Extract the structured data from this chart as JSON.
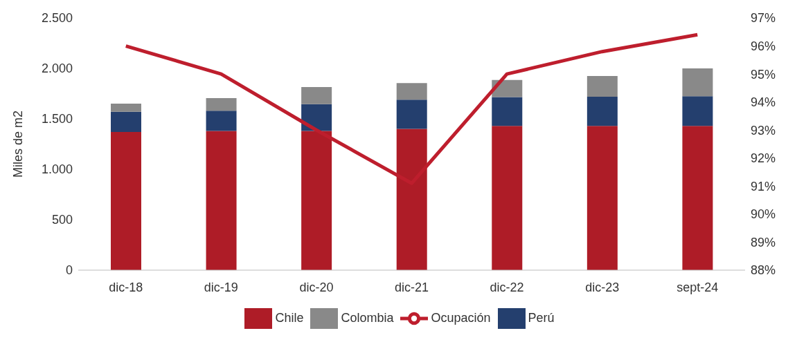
{
  "chart_data": {
    "type": "bar",
    "stacked": true,
    "ylabel": "Miles de m2",
    "categories": [
      "dic-18",
      "dic-19",
      "dic-20",
      "dic-21",
      "dic-22",
      "dic-23",
      "sept-24"
    ],
    "series": [
      {
        "name": "Chile",
        "color": "#ae1c27",
        "values": [
          1370,
          1380,
          1380,
          1400,
          1430,
          1430,
          1430
        ]
      },
      {
        "name": "Perú",
        "color": "#243f6e",
        "values": [
          200,
          200,
          265,
          290,
          285,
          290,
          295
        ]
      },
      {
        "name": "Colombia",
        "color": "#898989",
        "values": [
          80,
          125,
          170,
          165,
          170,
          205,
          275
        ]
      },
      {
        "name": "Ocupación",
        "type": "line",
        "axis": "y2",
        "color": "#be1e2d",
        "values": [
          96.0,
          95.0,
          93.0,
          91.1,
          95.0,
          95.8,
          96.4
        ]
      }
    ],
    "ylim": [
      0,
      2500
    ],
    "yticks": [
      {
        "value": 0,
        "label": "0"
      },
      {
        "value": 500,
        "label": "500"
      },
      {
        "value": 1000,
        "label": "1.000"
      },
      {
        "value": 1500,
        "label": "1.500"
      },
      {
        "value": 2000,
        "label": "2.000"
      },
      {
        "value": 2500,
        "label": "2.500"
      }
    ],
    "y2lim": [
      88,
      97
    ],
    "y2ticks": [
      {
        "value": 88,
        "label": "88%"
      },
      {
        "value": 89,
        "label": "89%"
      },
      {
        "value": 90,
        "label": "90%"
      },
      {
        "value": 91,
        "label": "91%"
      },
      {
        "value": 92,
        "label": "92%"
      },
      {
        "value": 93,
        "label": "93%"
      },
      {
        "value": 94,
        "label": "94%"
      },
      {
        "value": 95,
        "label": "95%"
      },
      {
        "value": 96,
        "label": "96%"
      },
      {
        "value": 97,
        "label": "97%"
      }
    ],
    "grid": false,
    "legend": "bottom",
    "marker": "none",
    "line_style": "solid"
  }
}
